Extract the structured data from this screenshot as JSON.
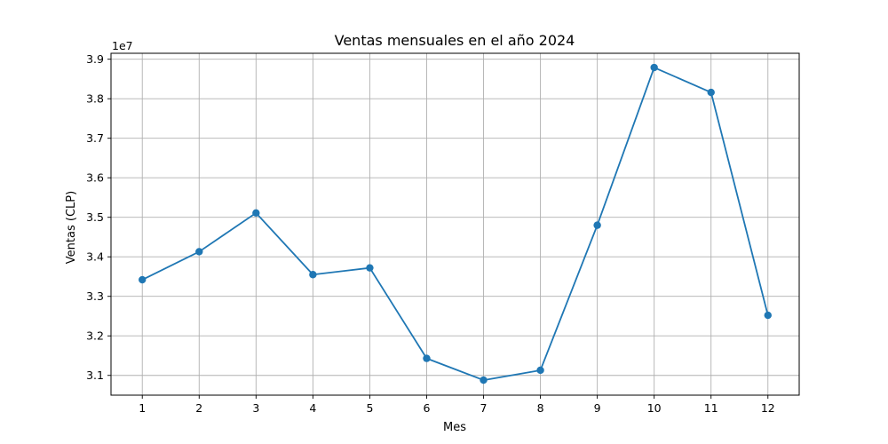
{
  "chart_data": {
    "type": "line",
    "title": "Ventas mensuales en el año 2024",
    "xlabel": "Mes",
    "ylabel": "Ventas (CLP)",
    "y_offset_label": "1e7",
    "x": [
      1,
      2,
      3,
      4,
      5,
      6,
      7,
      8,
      9,
      10,
      11,
      12
    ],
    "x_tick_labels": [
      "1",
      "2",
      "3",
      "4",
      "5",
      "6",
      "7",
      "8",
      "9",
      "10",
      "11",
      "12"
    ],
    "y_ticks": [
      31000000,
      32000000,
      33000000,
      34000000,
      35000000,
      36000000,
      37000000,
      38000000,
      39000000
    ],
    "y_tick_labels": [
      "3.1",
      "3.2",
      "3.3",
      "3.4",
      "3.5",
      "3.6",
      "3.7",
      "3.8",
      "3.9"
    ],
    "xlim": [
      0.45,
      12.55
    ],
    "ylim": [
      30500000,
      39150000
    ],
    "grid": true,
    "series": [
      {
        "color": "#1f77b4",
        "marker": "circle",
        "values": [
          33420000,
          34130000,
          35110000,
          33550000,
          33720000,
          31430000,
          30880000,
          31130000,
          34800000,
          38790000,
          38160000,
          32520000
        ]
      }
    ]
  }
}
